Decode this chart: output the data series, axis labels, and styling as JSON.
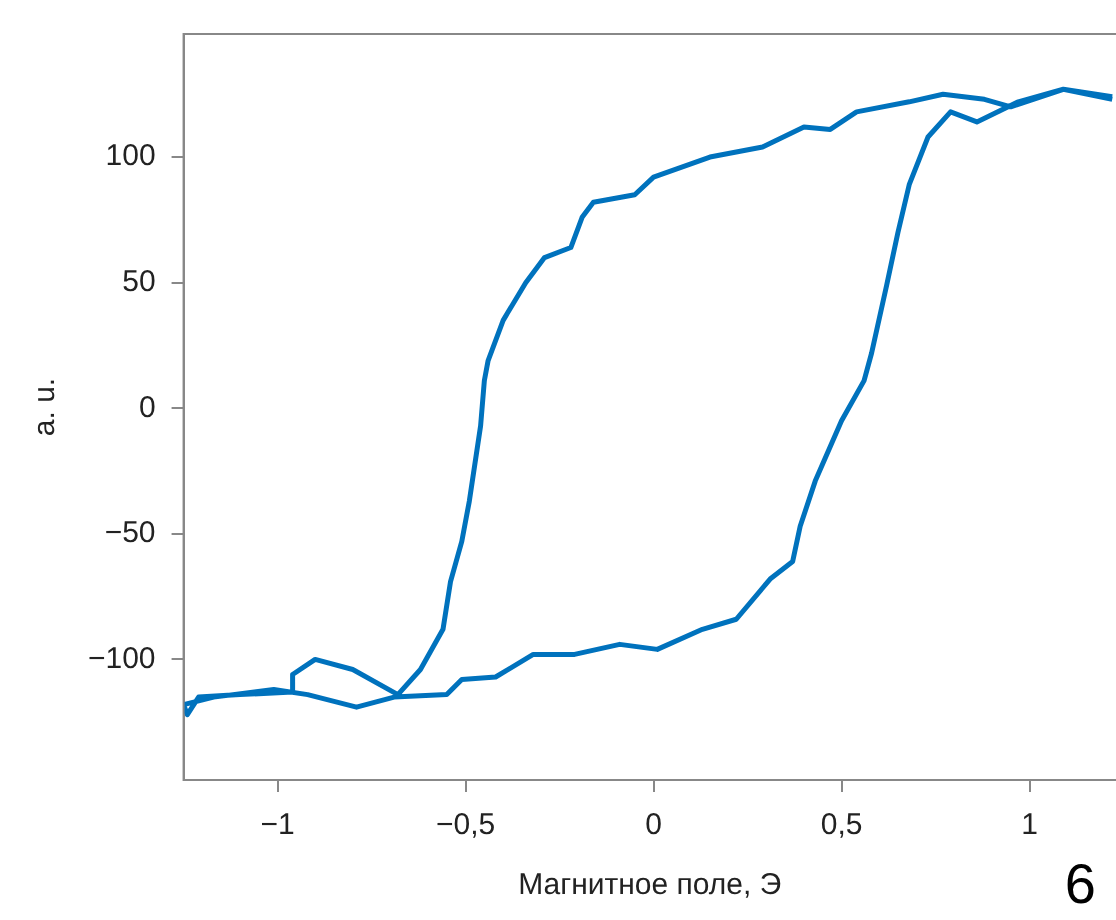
{
  "chart_data": {
    "type": "line",
    "xlabel": "Магнитное поле, Э",
    "ylabel": "a. u.",
    "annotations": [
      "6"
    ],
    "xlim": [
      -1.25,
      1.23
    ],
    "ylim": [
      -148,
      149
    ],
    "xticks": [
      {
        "value": -1,
        "label": "−1"
      },
      {
        "value": -0.5,
        "label": "−0,5"
      },
      0,
      {
        "value": 0.5,
        "label": "0,5"
      },
      1
    ],
    "yticks": [
      {
        "value": -100,
        "label": "−100"
      },
      {
        "value": -50,
        "label": "−50"
      },
      0,
      50,
      100
    ],
    "grid": false,
    "legend": false,
    "marker": "none",
    "line_style": "solid",
    "series": [
      {
        "color": "#0072bd",
        "x": [
          1.22,
          1.09,
          0.95,
          0.88,
          0.77,
          0.68,
          0.54,
          0.47,
          0.4,
          0.29,
          0.15,
          0.0,
          -0.05,
          -0.16,
          -0.19,
          -0.22,
          -0.29,
          -0.34,
          -0.4,
          -0.44,
          -0.45,
          -0.46,
          -0.49,
          -0.51,
          -0.54,
          -0.56,
          -0.62,
          -0.68,
          -0.8,
          -0.9,
          -0.96,
          -0.96,
          -1.1,
          -1.21,
          -1.24,
          -1.25,
          -1.17,
          -1.01,
          -0.92,
          -0.79,
          -0.69,
          -0.55,
          -0.51,
          -0.42,
          -0.32,
          -0.21,
          -0.09,
          0.01,
          0.13,
          0.22,
          0.31,
          0.37,
          0.39,
          0.43,
          0.5,
          0.56,
          0.58,
          0.62,
          0.65,
          0.68,
          0.73,
          0.79,
          0.86,
          0.97,
          1.09,
          1.22
        ],
        "values": [
          124,
          127,
          120,
          123,
          125,
          122,
          118,
          111,
          112,
          104,
          100,
          92,
          85,
          82,
          76,
          64,
          60,
          50,
          35,
          19,
          11,
          -7,
          -37,
          -53,
          -69,
          -88,
          -104,
          -114,
          -104,
          -100,
          -106,
          -113,
          -114,
          -115,
          -122,
          -118,
          -115,
          -112,
          -114,
          -119,
          -115,
          -114,
          -108,
          -107,
          -98,
          -98,
          -94,
          -96,
          -88,
          -84,
          -68,
          -61,
          -47,
          -29,
          -5,
          11,
          22,
          49,
          70,
          89,
          108,
          118,
          114,
          122,
          127,
          123
        ]
      }
    ]
  }
}
